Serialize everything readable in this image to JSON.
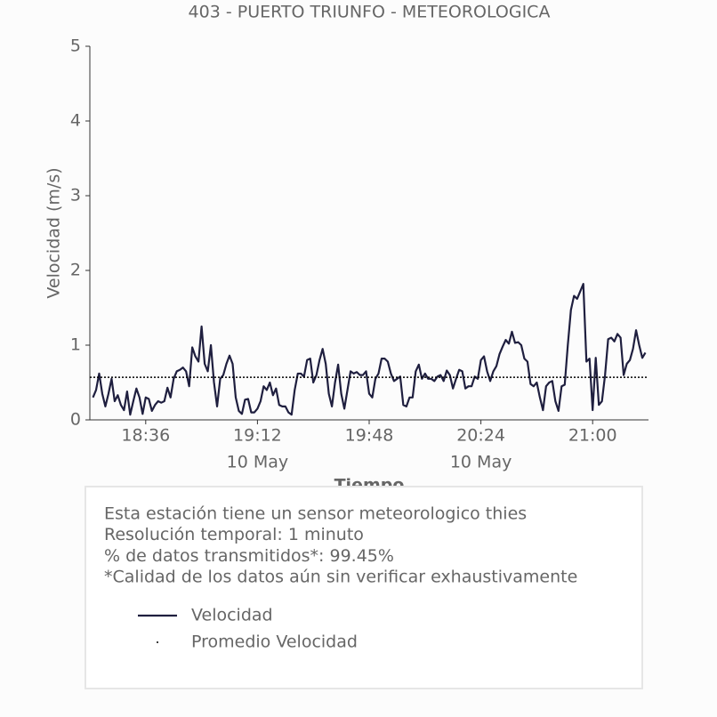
{
  "chart_data": {
    "type": "line",
    "title": "403 - PUERTO TRIUNFO - METEOROLOGICA",
    "ylabel": "Velocidad (m/s)",
    "xlabel": "Tiempo",
    "x": [
      "18:19",
      "18:20",
      "18:21",
      "18:22",
      "18:23",
      "18:24",
      "18:25",
      "18:26",
      "18:27",
      "18:28",
      "18:29",
      "18:30",
      "18:31",
      "18:32",
      "18:33",
      "18:34",
      "18:35",
      "18:36",
      "18:37",
      "18:38",
      "18:39",
      "18:40",
      "18:41",
      "18:42",
      "18:43",
      "18:44",
      "18:45",
      "18:46",
      "18:47",
      "18:48",
      "18:49",
      "18:50",
      "18:51",
      "18:52",
      "18:53",
      "18:54",
      "18:55",
      "18:56",
      "18:57",
      "18:58",
      "18:59",
      "19:00",
      "19:01",
      "19:02",
      "19:03",
      "19:04",
      "19:05",
      "19:06",
      "19:07",
      "19:08",
      "19:09",
      "19:10",
      "19:11",
      "19:12",
      "19:13",
      "19:14",
      "19:15",
      "19:16",
      "19:17",
      "19:18",
      "19:19",
      "19:20",
      "19:21",
      "19:22",
      "19:23",
      "19:24",
      "19:25",
      "19:26",
      "19:27",
      "19:28",
      "19:29",
      "19:30",
      "19:31",
      "19:32",
      "19:33",
      "19:34",
      "19:35",
      "19:36",
      "19:37",
      "19:38",
      "19:39",
      "19:40",
      "19:41",
      "19:42",
      "19:43",
      "19:44",
      "19:45",
      "19:46",
      "19:47",
      "19:48",
      "19:49",
      "19:50",
      "19:51",
      "19:52",
      "19:53",
      "19:54",
      "19:55",
      "19:56",
      "19:57",
      "19:58",
      "19:59",
      "20:00",
      "20:01",
      "20:02",
      "20:03",
      "20:04",
      "20:05",
      "20:06",
      "20:07",
      "20:08",
      "20:09",
      "20:10",
      "20:11",
      "20:12",
      "20:13",
      "20:14",
      "20:15",
      "20:16",
      "20:17",
      "20:18",
      "20:19",
      "20:20",
      "20:21",
      "20:22",
      "20:23",
      "20:24",
      "20:25",
      "20:26",
      "20:27",
      "20:28",
      "20:29",
      "20:30",
      "20:31",
      "20:32",
      "20:33",
      "20:34",
      "20:35",
      "20:36",
      "20:37",
      "20:38",
      "20:39",
      "20:40",
      "20:41",
      "20:42",
      "20:43",
      "20:44",
      "20:45",
      "20:46",
      "20:47",
      "20:48",
      "20:49",
      "20:50",
      "20:51",
      "20:52",
      "20:53",
      "20:54",
      "20:55",
      "20:56",
      "20:57",
      "20:58",
      "20:59",
      "21:00",
      "21:01",
      "21:02",
      "21:03",
      "21:04",
      "21:05",
      "21:06",
      "21:07",
      "21:08",
      "21:09",
      "21:10",
      "21:11",
      "21:12",
      "21:13",
      "21:14",
      "21:15",
      "21:16",
      "21:17"
    ],
    "series": [
      {
        "name": "Velocidad",
        "color": "#1f1f3f",
        "values": [
          0.3,
          0.4,
          0.62,
          0.35,
          0.18,
          0.35,
          0.55,
          0.25,
          0.33,
          0.2,
          0.13,
          0.38,
          0.07,
          0.25,
          0.42,
          0.3,
          0.08,
          0.3,
          0.28,
          0.12,
          0.2,
          0.25,
          0.23,
          0.25,
          0.43,
          0.3,
          0.55,
          0.65,
          0.67,
          0.7,
          0.65,
          0.45,
          0.97,
          0.85,
          0.78,
          1.25,
          0.75,
          0.65,
          1.0,
          0.5,
          0.18,
          0.55,
          0.6,
          0.75,
          0.86,
          0.75,
          0.3,
          0.12,
          0.08,
          0.27,
          0.28,
          0.1,
          0.1,
          0.15,
          0.25,
          0.45,
          0.4,
          0.5,
          0.33,
          0.42,
          0.2,
          0.18,
          0.18,
          0.1,
          0.07,
          0.4,
          0.62,
          0.62,
          0.58,
          0.8,
          0.82,
          0.5,
          0.6,
          0.8,
          0.95,
          0.75,
          0.35,
          0.18,
          0.5,
          0.74,
          0.35,
          0.15,
          0.4,
          0.65,
          0.62,
          0.64,
          0.6,
          0.6,
          0.65,
          0.35,
          0.3,
          0.55,
          0.62,
          0.82,
          0.82,
          0.78,
          0.62,
          0.52,
          0.55,
          0.58,
          0.2,
          0.18,
          0.3,
          0.3,
          0.65,
          0.74,
          0.55,
          0.62,
          0.55,
          0.55,
          0.52,
          0.58,
          0.6,
          0.52,
          0.66,
          0.6,
          0.42,
          0.55,
          0.67,
          0.65,
          0.42,
          0.45,
          0.45,
          0.58,
          0.55,
          0.8,
          0.85,
          0.65,
          0.52,
          0.65,
          0.72,
          0.88,
          0.98,
          1.07,
          1.02,
          1.18,
          1.03,
          1.04,
          1.0,
          0.82,
          0.78,
          0.48,
          0.45,
          0.5,
          0.3,
          0.13,
          0.45,
          0.5,
          0.52,
          0.25,
          0.12,
          0.45,
          0.47,
          1.0,
          1.47,
          1.66,
          1.62,
          1.72,
          1.82,
          0.78,
          0.82,
          0.13,
          0.83,
          0.2,
          0.25,
          0.6,
          1.08,
          1.1,
          1.05,
          1.15,
          1.1,
          0.6,
          0.75,
          0.8,
          0.95,
          1.2,
          1.0,
          0.83,
          0.9
        ]
      },
      {
        "name": "Promedio Velocidad",
        "color": "#000000",
        "style": "dotted",
        "value": 0.57
      }
    ],
    "xlim": [
      "18:18",
      "21:18"
    ],
    "xticks": [
      "18:36",
      "19:12",
      "19:48",
      "20:24",
      "21:00"
    ],
    "xtick_sublabels": [
      null,
      "10 May",
      null,
      "10 May",
      null
    ],
    "ylim": [
      0,
      5
    ],
    "yticks": [
      0,
      1,
      2,
      3,
      4,
      5
    ],
    "notes": [
      "Esta estación tiene un sensor meteorologico thies",
      "Resolución temporal: 1 minuto",
      "% de datos transmitidos*: 99.45%",
      "*Calidad de los datos aún sin verificar exhaustivamente"
    ]
  }
}
